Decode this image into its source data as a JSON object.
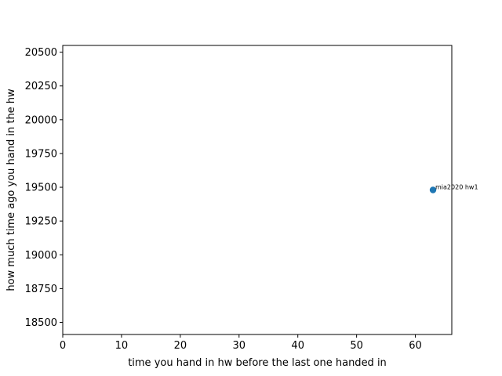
{
  "chart_data": {
    "type": "scatter",
    "title": "",
    "xlabel": "time you hand in hw before the last one handed in",
    "ylabel": "how much time ago you hand in the hw",
    "xlim": [
      0,
      66.2
    ],
    "ylim": [
      18410,
      20550
    ],
    "xticks": [
      0,
      10,
      20,
      30,
      40,
      50,
      60
    ],
    "yticks": [
      18500,
      18750,
      19000,
      19250,
      19500,
      19750,
      20000,
      20250,
      20500
    ],
    "grid": false,
    "legend": "none",
    "series": [
      {
        "color": "#1f77b4",
        "points": [
          {
            "x": 63,
            "y": 19480,
            "label": "mia2020 hw1"
          }
        ]
      }
    ]
  }
}
